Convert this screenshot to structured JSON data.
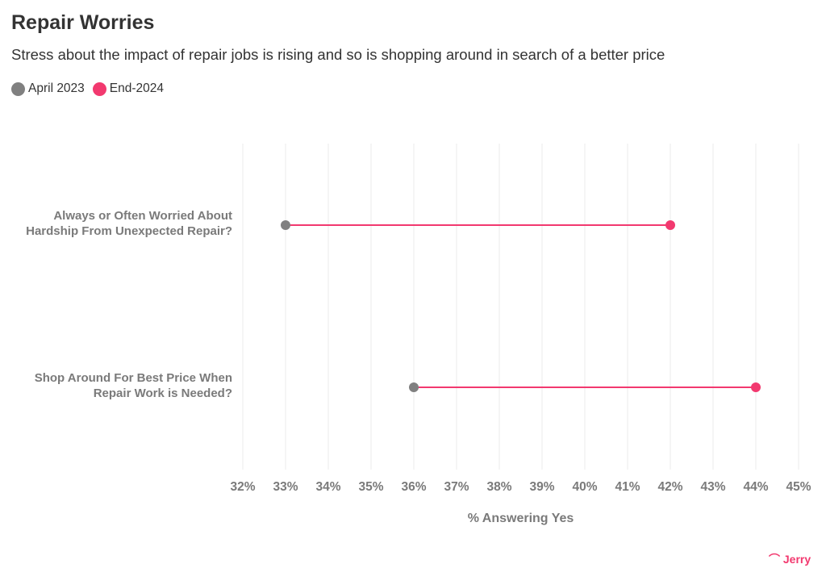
{
  "chart_data": {
    "type": "dumbbell",
    "title": "Repair Worries",
    "subtitle": "Stress about the impact of repair jobs is rising and so is shopping around in search of a better price",
    "xlabel": "% Answering Yes",
    "xlim": [
      32,
      45
    ],
    "ticks": [
      "32%",
      "33%",
      "34%",
      "35%",
      "36%",
      "37%",
      "38%",
      "39%",
      "40%",
      "41%",
      "42%",
      "43%",
      "44%",
      "45%"
    ],
    "grid": true,
    "legend_placement": "top-left",
    "categories": [
      [
        "Always or Often Worried About",
        "Hardship From Unexpected Repair?"
      ],
      [
        "Shop Around For Best Price When",
        "Repair Work is Needed?"
      ]
    ],
    "series": [
      {
        "name": "April 2023",
        "color": "#808080",
        "values": [
          33,
          36
        ]
      },
      {
        "name": "End-2024",
        "color": "#f2396f",
        "values": [
          42,
          44
        ]
      }
    ]
  },
  "logo": "Jerry"
}
